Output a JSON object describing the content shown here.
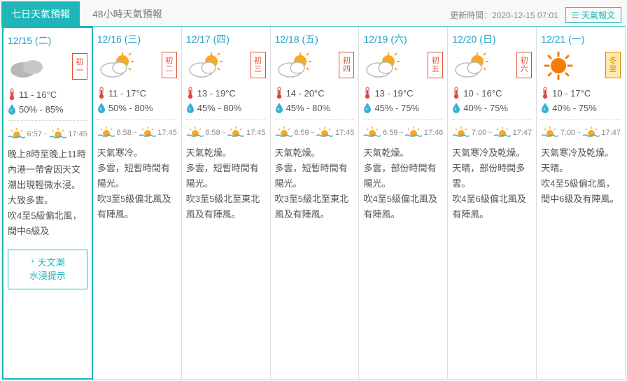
{
  "tabs": {
    "active": "七日天氣預報",
    "inactive": "48小時天氣預報",
    "update_label": "更新時間：",
    "update_time": "2020-12-15 07:01",
    "report_icon": "☰",
    "report_link": "天氣報文"
  },
  "tide_button": "⁺ 天文潮\n水浸提示",
  "colors": {
    "accent": "#1eb6b8",
    "date": "#1ea0c8",
    "lunar_border": "#e05030",
    "solar_bg": "#ffe9a8",
    "solar_border": "#d68a00"
  },
  "days": [
    {
      "date": "12/15 (二)",
      "lunar": "初一",
      "lunar_type": "lunar",
      "icon": "overcast",
      "temp": "11 - 16°C",
      "humidity": "50% - 85%",
      "sunrise": "6:57",
      "sunset": "17:45",
      "desc": "晚上8時至晚上11時內港一帶會因天文潮出現輕微水浸。\n大致多雲。\n吹4至5級偏北風，間中6級及"
    },
    {
      "date": "12/16 (三)",
      "lunar": "初二",
      "lunar_type": "lunar",
      "icon": "partly",
      "temp": "11 - 17°C",
      "humidity": "50% - 80%",
      "sunrise": "6:58",
      "sunset": "17:45",
      "desc": "天氣寒冷。\n多雲，短暫時間有陽光。\n吹3至5級偏北風及有陣風。"
    },
    {
      "date": "12/17 (四)",
      "lunar": "初三",
      "lunar_type": "lunar",
      "icon": "partly",
      "temp": "13 - 19°C",
      "humidity": "45% - 80%",
      "sunrise": "6:58",
      "sunset": "17:45",
      "desc": "天氣乾燥。\n多雲，短暫時間有陽光。\n吹3至5級北至東北風及有陣風。"
    },
    {
      "date": "12/18 (五)",
      "lunar": "初四",
      "lunar_type": "lunar",
      "icon": "partly",
      "temp": "14 - 20°C",
      "humidity": "45% - 80%",
      "sunrise": "6:59",
      "sunset": "17:45",
      "desc": "天氣乾燥。\n多雲，短暫時間有陽光。\n吹3至5級北至東北風及有陣風。"
    },
    {
      "date": "12/19 (六)",
      "lunar": "初五",
      "lunar_type": "lunar",
      "icon": "partly",
      "temp": "13 - 19°C",
      "humidity": "45% - 75%",
      "sunrise": "6:59",
      "sunset": "17:46",
      "desc": "天氣乾燥。\n多雲，部份時間有陽光。\n吹4至5級偏北風及有陣風。"
    },
    {
      "date": "12/20 (日)",
      "lunar": "初六",
      "lunar_type": "lunar",
      "icon": "partly",
      "temp": "10 - 16°C",
      "humidity": "40% - 75%",
      "sunrise": "7:00",
      "sunset": "17:47",
      "desc": "天氣寒冷及乾燥。\n天晴，部份時間多雲。\n吹4至6級偏北風及有陣風。"
    },
    {
      "date": "12/21 (一)",
      "lunar": "冬至",
      "lunar_type": "solar",
      "icon": "sunny",
      "temp": "10 - 17°C",
      "humidity": "40% - 75%",
      "sunrise": "7:00",
      "sunset": "17:47",
      "desc": "天氣寒冷及乾燥。\n天晴。\n吹4至5級偏北風，間中6級及有陣風。"
    }
  ]
}
